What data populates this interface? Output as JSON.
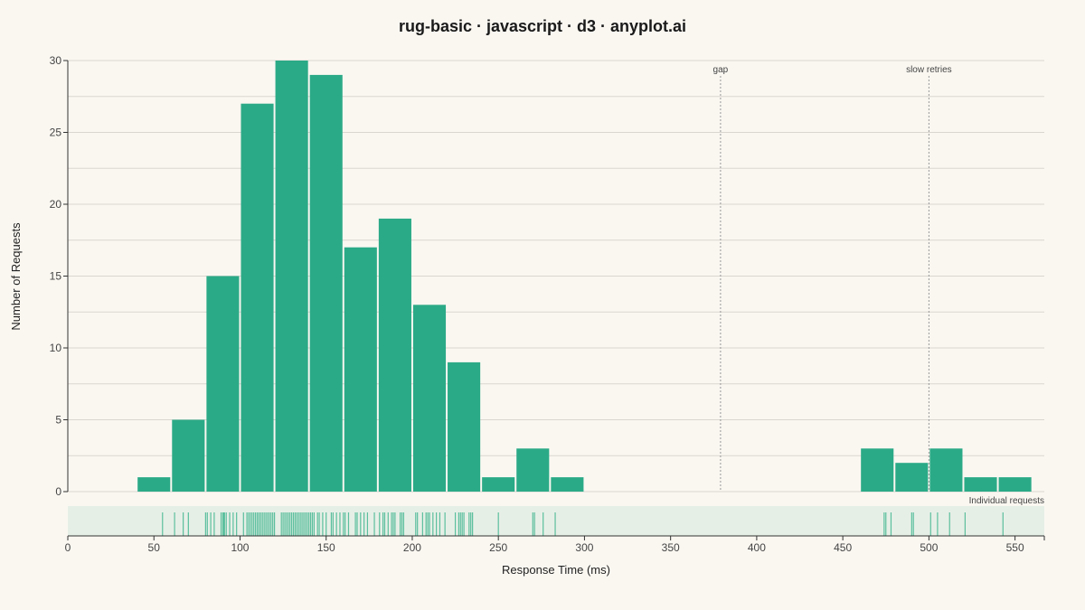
{
  "chart_data": {
    "type": "bar",
    "title": "rug-basic · javascript · d3 · anyplot.ai",
    "xlabel": "Response Time (ms)",
    "ylabel": "Number of Requests",
    "xlim": [
      0,
      567
    ],
    "ylim": [
      0,
      30
    ],
    "x_ticks": [
      "0",
      "50",
      "100",
      "150",
      "200",
      "250",
      "300",
      "350",
      "400",
      "450",
      "500",
      "550"
    ],
    "y_ticks": [
      "0",
      "5",
      "10",
      "15",
      "20",
      "25",
      "30"
    ],
    "grid": true,
    "bar_color": "#2BAA87",
    "bin_width": 20,
    "bins": [
      {
        "x0": 40,
        "x1": 60,
        "count": 1
      },
      {
        "x0": 60,
        "x1": 80,
        "count": 5
      },
      {
        "x0": 80,
        "x1": 100,
        "count": 15
      },
      {
        "x0": 100,
        "x1": 120,
        "count": 27
      },
      {
        "x0": 120,
        "x1": 140,
        "count": 30
      },
      {
        "x0": 140,
        "x1": 160,
        "count": 29
      },
      {
        "x0": 160,
        "x1": 180,
        "count": 17
      },
      {
        "x0": 180,
        "x1": 200,
        "count": 19
      },
      {
        "x0": 200,
        "x1": 220,
        "count": 13
      },
      {
        "x0": 220,
        "x1": 240,
        "count": 9
      },
      {
        "x0": 240,
        "x1": 260,
        "count": 1
      },
      {
        "x0": 260,
        "x1": 280,
        "count": 3
      },
      {
        "x0": 280,
        "x1": 300,
        "count": 1
      },
      {
        "x0": 460,
        "x1": 480,
        "count": 3
      },
      {
        "x0": 480,
        "x1": 500,
        "count": 2
      },
      {
        "x0": 500,
        "x1": 520,
        "count": 3
      },
      {
        "x0": 520,
        "x1": 540,
        "count": 1
      },
      {
        "x0": 540,
        "x1": 560,
        "count": 1
      }
    ],
    "rug": {
      "label": "Individual requests",
      "color": "#5BBF9E",
      "values": [
        55,
        62,
        67,
        70,
        80,
        81,
        83,
        85,
        89,
        90,
        90.5,
        91,
        92,
        94,
        96,
        98,
        102,
        104,
        105,
        106,
        107,
        108,
        109,
        110,
        111,
        112,
        113,
        114,
        115,
        116,
        117,
        118,
        119,
        120,
        124,
        125,
        126,
        127,
        128,
        129,
        130,
        131,
        132,
        133,
        134,
        135,
        136,
        137,
        138,
        139,
        140,
        141,
        142,
        143,
        145,
        146,
        148,
        150,
        153,
        154,
        156,
        158,
        160,
        161,
        163,
        167,
        168,
        170,
        172,
        174,
        178,
        181,
        183,
        184,
        186,
        188,
        189,
        190,
        193,
        194,
        195,
        202,
        203,
        206,
        208,
        209,
        210,
        212,
        214,
        216,
        219,
        225,
        227,
        228,
        229,
        230,
        233,
        234,
        235,
        250,
        270,
        271,
        276,
        283,
        474,
        475,
        478,
        490,
        491,
        501,
        505,
        512,
        521,
        543
      ]
    },
    "annotations": [
      {
        "x": 379,
        "label": "gap"
      },
      {
        "x": 500,
        "label": "slow retries"
      }
    ]
  }
}
